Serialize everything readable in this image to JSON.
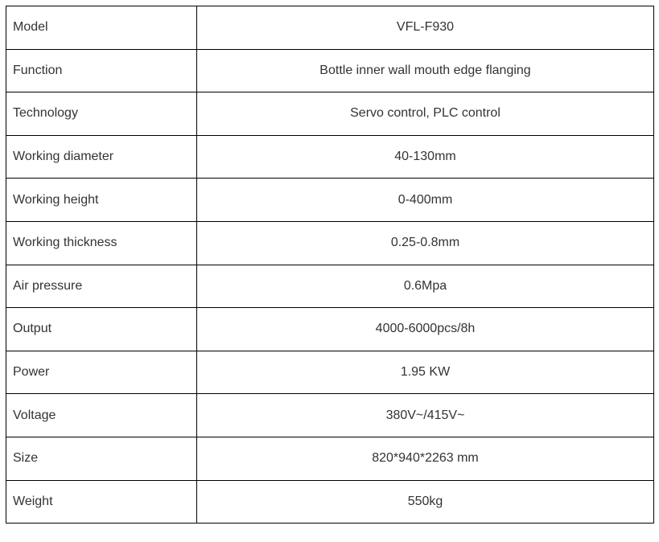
{
  "specs": [
    {
      "label": "Model",
      "value": "VFL-F930"
    },
    {
      "label": "Function",
      "value": "Bottle inner wall mouth edge flanging"
    },
    {
      "label": "Technology",
      "value": "Servo control, PLC control"
    },
    {
      "label": "Working diameter",
      "value": "40-130mm"
    },
    {
      "label": "Working height",
      "value": "0-400mm"
    },
    {
      "label": "Working thickness",
      "value": "0.25-0.8mm"
    },
    {
      "label": "Air pressure",
      "value": "0.6Mpa"
    },
    {
      "label": "Output",
      "value": "4000-6000pcs/8h"
    },
    {
      "label": "Power",
      "value": "1.95 KW"
    },
    {
      "label": "Voltage",
      "value": "380V~/415V~"
    },
    {
      "label": "Size",
      "value": "820*940*2263 mm"
    },
    {
      "label": "Weight",
      "value": "550kg"
    }
  ]
}
